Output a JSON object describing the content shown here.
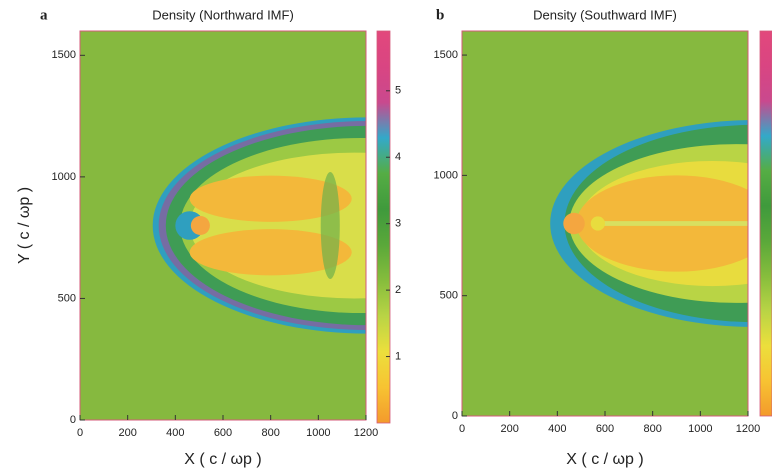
{
  "chart_data": [
    {
      "type": "heatmap",
      "panel_label": "a",
      "title": "Density (Northward IMF)",
      "xlabel": "X ( c / ωp )",
      "ylabel": "Y ( c / ωp )",
      "xlim": [
        0,
        1200
      ],
      "xticks": [
        0,
        200,
        400,
        600,
        800,
        1000,
        1200
      ],
      "ylim": [
        0,
        1600
      ],
      "yticks": [
        0,
        500,
        1000,
        1500
      ],
      "colorbar": {
        "lim": [
          0,
          5.9
        ],
        "ticks": [
          1,
          2,
          3,
          4,
          5
        ]
      },
      "colormap": [
        "#f39a2c",
        "#f7c332",
        "#ecdf3c",
        "#b9d445",
        "#86bd3c",
        "#5aa83a",
        "#3f9a3c",
        "#55ad44",
        "#33a9c9",
        "#c9498e",
        "#d94582",
        "#e2487c"
      ]
    },
    {
      "type": "heatmap",
      "panel_label": "b",
      "title": "Density (Southward IMF)",
      "xlabel": "X ( c / ωp )",
      "xlim": [
        0,
        1200
      ],
      "xticks": [
        0,
        200,
        400,
        600,
        800,
        1000,
        1200
      ],
      "ylim": [
        0,
        1600
      ],
      "yticks": [
        0,
        500,
        1000,
        1500
      ],
      "colormap": [
        "#f39a2c",
        "#f7c332",
        "#ecdf3c",
        "#b9d445",
        "#86bd3c",
        "#5aa83a",
        "#3f9a3c",
        "#55ad44",
        "#33a9c9",
        "#c9498e",
        "#d94582",
        "#e2487c"
      ]
    }
  ]
}
